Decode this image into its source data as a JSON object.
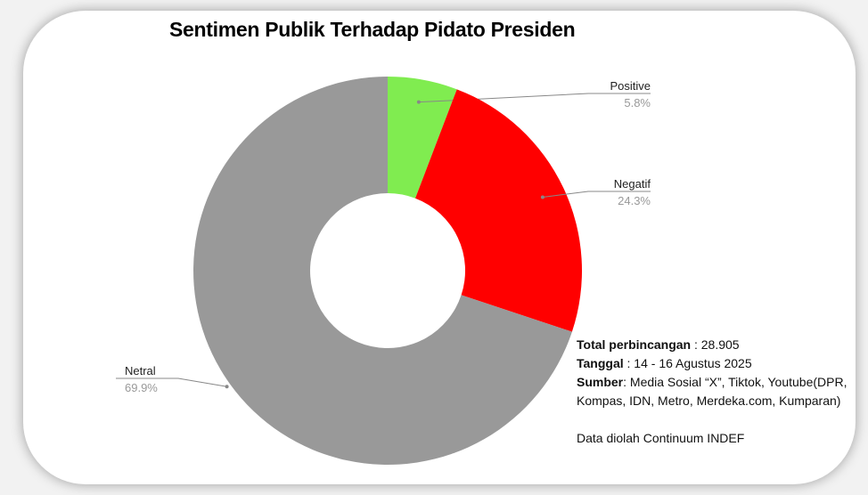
{
  "chart_data": {
    "type": "pie",
    "donut": true,
    "title": "Sentimen Publik Terhadap Pidato Presiden",
    "slices": [
      {
        "label": "Positive",
        "value": 5.8,
        "display": "5.8%",
        "color": "#80ec50"
      },
      {
        "label": "Negatif",
        "value": 24.3,
        "display": "24.3%",
        "color": "#ff0000"
      },
      {
        "label": "Netral",
        "value": 69.9,
        "display": "69.9%",
        "color": "#999999"
      }
    ]
  },
  "info": {
    "total_label": "Total perbincangan",
    "total_value": " : 28.905",
    "date_label": "Tanggal",
    "date_value": " : 14 - 16 Agustus 2025",
    "source_label": "Sumber",
    "source_value": ": Media Sosial “X”, Tiktok, Youtube(DPR,",
    "source_value_2": "Kompas, IDN, Metro, Merdeka.com, Kumparan)",
    "credit": "Data diolah Continuum INDEF"
  }
}
